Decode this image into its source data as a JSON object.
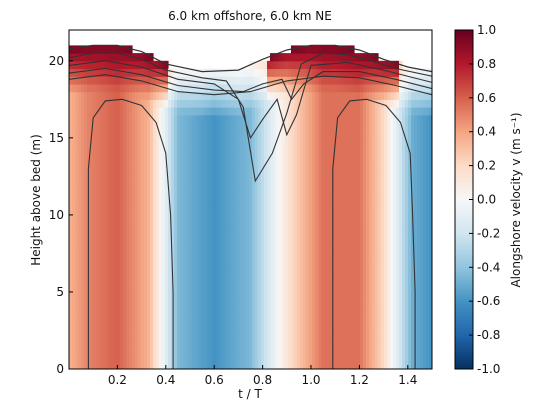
{
  "chart_data": {
    "type": "heatmap",
    "title": "6.0 km offshore, 6.0 km NE",
    "xlabel": "t / T",
    "ylabel": "Height above bed (m)",
    "colorbar_label": "Alongshore velocity v (m s⁻¹)",
    "xlim": [
      0,
      1.5
    ],
    "ylim": [
      0,
      22
    ],
    "color_range": [
      -1.0,
      1.0
    ],
    "colormap": "RdBu_r",
    "x_ticks": [
      "0.2",
      "0.4",
      "0.6",
      "0.8",
      "1.0",
      "1.2",
      "1.4"
    ],
    "x_tick_values": [
      0.2,
      0.4,
      0.6,
      0.8,
      1.0,
      1.2,
      1.4
    ],
    "y_ticks": [
      "0",
      "5",
      "10",
      "15",
      "20"
    ],
    "y_tick_values": [
      0,
      5,
      10,
      15,
      20
    ],
    "colorbar_ticks": [
      "-1.0",
      "-0.8",
      "-0.6",
      "-0.4",
      "-0.2",
      "0.0",
      "0.2",
      "0.4",
      "0.6",
      "0.8",
      "1.0"
    ],
    "colorbar_tick_values": [
      -1.0,
      -0.8,
      -0.6,
      -0.4,
      -0.2,
      0.0,
      0.2,
      0.4,
      0.6,
      0.8,
      1.0
    ],
    "velocity_phases": [
      {
        "t": 0.0,
        "v": 0.35
      },
      {
        "t": 0.08,
        "v": 0.5
      },
      {
        "t": 0.2,
        "v": 0.6
      },
      {
        "t": 0.33,
        "v": 0.35
      },
      {
        "t": 0.45,
        "v": -0.45
      },
      {
        "t": 0.6,
        "v": -0.6
      },
      {
        "t": 0.75,
        "v": -0.45
      },
      {
        "t": 0.92,
        "v": 0.2
      },
      {
        "t": 1.05,
        "v": 0.55
      },
      {
        "t": 1.2,
        "v": 0.55
      },
      {
        "t": 1.3,
        "v": 0.2
      },
      {
        "t": 1.42,
        "v": -0.5
      },
      {
        "t": 1.5,
        "v": -0.6
      }
    ],
    "water_surface": [
      {
        "t": 0.0,
        "h": 20.8
      },
      {
        "t": 0.1,
        "h": 21.0
      },
      {
        "t": 0.2,
        "h": 21.0
      },
      {
        "t": 0.3,
        "h": 20.6
      },
      {
        "t": 0.4,
        "h": 19.8
      },
      {
        "t": 0.55,
        "h": 19.3
      },
      {
        "t": 0.7,
        "h": 19.4
      },
      {
        "t": 0.8,
        "h": 20.1
      },
      {
        "t": 0.9,
        "h": 20.7
      },
      {
        "t": 1.0,
        "h": 21.0
      },
      {
        "t": 1.1,
        "h": 21.0
      },
      {
        "t": 1.2,
        "h": 20.7
      },
      {
        "t": 1.3,
        "h": 20.1
      },
      {
        "t": 1.4,
        "h": 19.6
      },
      {
        "t": 1.5,
        "h": 19.3
      }
    ],
    "contours": [
      [
        {
          "t": 0.08,
          "h": 0
        },
        {
          "t": 0.08,
          "h": 13.0
        },
        {
          "t": 0.1,
          "h": 16.3
        },
        {
          "t": 0.15,
          "h": 17.4
        },
        {
          "t": 0.22,
          "h": 17.5
        },
        {
          "t": 0.3,
          "h": 17.1
        },
        {
          "t": 0.36,
          "h": 16.0
        },
        {
          "t": 0.4,
          "h": 14.0
        },
        {
          "t": 0.42,
          "h": 10.0
        },
        {
          "t": 0.43,
          "h": 5.0
        },
        {
          "t": 0.43,
          "h": 0
        }
      ],
      [
        {
          "t": 1.09,
          "h": 0
        },
        {
          "t": 1.09,
          "h": 13.0
        },
        {
          "t": 1.11,
          "h": 16.3
        },
        {
          "t": 1.16,
          "h": 17.4
        },
        {
          "t": 1.23,
          "h": 17.5
        },
        {
          "t": 1.31,
          "h": 17.1
        },
        {
          "t": 1.37,
          "h": 16.0
        },
        {
          "t": 1.41,
          "h": 14.0
        },
        {
          "t": 1.42,
          "h": 10.0
        },
        {
          "t": 1.43,
          "h": 5.0
        },
        {
          "t": 1.43,
          "h": 0
        }
      ],
      [
        {
          "t": 0.0,
          "h": 20.2
        },
        {
          "t": 0.1,
          "h": 20.5
        },
        {
          "t": 0.2,
          "h": 20.5
        },
        {
          "t": 0.3,
          "h": 20.1
        },
        {
          "t": 0.4,
          "h": 19.4
        },
        {
          "t": 0.55,
          "h": 18.9
        },
        {
          "t": 0.65,
          "h": 18.7
        },
        {
          "t": 0.72,
          "h": 17.0
        },
        {
          "t": 0.77,
          "h": 12.2
        },
        {
          "t": 0.84,
          "h": 14.0
        },
        {
          "t": 0.9,
          "h": 16.6
        },
        {
          "t": 0.96,
          "h": 19.8
        },
        {
          "t": 1.05,
          "h": 20.5
        },
        {
          "t": 1.15,
          "h": 20.4
        },
        {
          "t": 1.25,
          "h": 20.0
        },
        {
          "t": 1.35,
          "h": 19.5
        },
        {
          "t": 1.5,
          "h": 19.0
        }
      ],
      [
        {
          "t": 0.0,
          "h": 19.7
        },
        {
          "t": 0.15,
          "h": 20.0
        },
        {
          "t": 0.3,
          "h": 19.6
        },
        {
          "t": 0.45,
          "h": 18.8
        },
        {
          "t": 0.6,
          "h": 18.5
        },
        {
          "t": 0.7,
          "h": 17.5
        },
        {
          "t": 0.75,
          "h": 15.0
        },
        {
          "t": 0.8,
          "h": 16.2
        },
        {
          "t": 0.86,
          "h": 17.5
        },
        {
          "t": 0.9,
          "h": 15.2
        },
        {
          "t": 0.94,
          "h": 16.5
        },
        {
          "t": 1.0,
          "h": 19.7
        },
        {
          "t": 1.15,
          "h": 19.9
        },
        {
          "t": 1.3,
          "h": 19.4
        },
        {
          "t": 1.5,
          "h": 18.6
        }
      ],
      [
        {
          "t": 0.0,
          "h": 19.2
        },
        {
          "t": 0.15,
          "h": 19.5
        },
        {
          "t": 0.3,
          "h": 19.1
        },
        {
          "t": 0.45,
          "h": 18.4
        },
        {
          "t": 0.6,
          "h": 18.1
        },
        {
          "t": 0.72,
          "h": 18.0
        },
        {
          "t": 0.8,
          "h": 18.5
        },
        {
          "t": 0.88,
          "h": 18.8
        },
        {
          "t": 0.92,
          "h": 17.5
        },
        {
          "t": 0.97,
          "h": 18.5
        },
        {
          "t": 1.05,
          "h": 19.3
        },
        {
          "t": 1.2,
          "h": 19.3
        },
        {
          "t": 1.35,
          "h": 18.8
        },
        {
          "t": 1.5,
          "h": 18.2
        }
      ],
      [
        {
          "t": 0.0,
          "h": 18.8
        },
        {
          "t": 0.15,
          "h": 19.1
        },
        {
          "t": 0.3,
          "h": 18.7
        },
        {
          "t": 0.45,
          "h": 18.0
        },
        {
          "t": 0.6,
          "h": 17.8
        },
        {
          "t": 0.75,
          "h": 18.0
        },
        {
          "t": 0.9,
          "h": 18.7
        },
        {
          "t": 1.05,
          "h": 19.0
        },
        {
          "t": 1.2,
          "h": 18.9
        },
        {
          "t": 1.35,
          "h": 18.4
        },
        {
          "t": 1.5,
          "h": 17.8
        }
      ]
    ]
  }
}
